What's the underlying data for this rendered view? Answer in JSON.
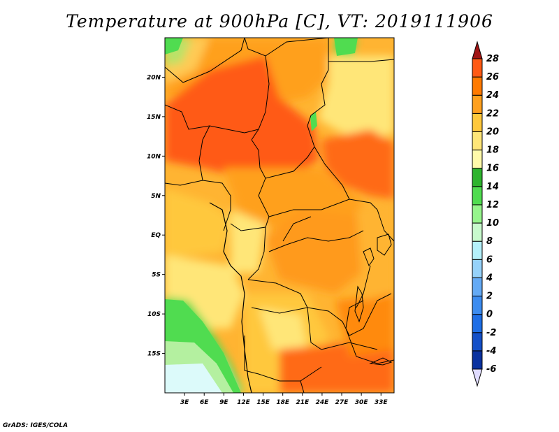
{
  "title": "Temperature at 900hPa [C], VT: 2019111906",
  "credit": "GrADS: IGES/COLA",
  "map": {
    "lon_range": [
      0,
      35
    ],
    "lat_range": [
      -20,
      25
    ],
    "x_ticks": [
      {
        "lon": 3,
        "label": "3E"
      },
      {
        "lon": 6,
        "label": "6E"
      },
      {
        "lon": 9,
        "label": "9E"
      },
      {
        "lon": 12,
        "label": "12E"
      },
      {
        "lon": 15,
        "label": "15E"
      },
      {
        "lon": 18,
        "label": "18E"
      },
      {
        "lon": 21,
        "label": "21E"
      },
      {
        "lon": 24,
        "label": "24E"
      },
      {
        "lon": 27,
        "label": "27E"
      },
      {
        "lon": 30,
        "label": "30E"
      },
      {
        "lon": 33,
        "label": "33E"
      }
    ],
    "y_ticks": [
      {
        "lat": 20,
        "label": "20N"
      },
      {
        "lat": 15,
        "label": "15N"
      },
      {
        "lat": 10,
        "label": "10N"
      },
      {
        "lat": 5,
        "label": "5N"
      },
      {
        "lat": 0,
        "label": "EQ"
      },
      {
        "lat": -5,
        "label": "5S"
      },
      {
        "lat": -10,
        "label": "10S"
      },
      {
        "lat": -15,
        "label": "15S"
      }
    ]
  },
  "colorbar": {
    "colors": [
      "#0a0a78",
      "#0a32a0",
      "#1450c8",
      "#1e6ee6",
      "#3c8cf0",
      "#64aaf5",
      "#96d2fa",
      "#b4f0fa",
      "#c8facd",
      "#96f58c",
      "#50dc50",
      "#2eb42e",
      "#fffaaa",
      "#ffe678",
      "#ffc83c",
      "#ffa01e",
      "#ff7a00",
      "#ff5a14",
      "#e11e0a",
      "#a01414"
    ],
    "under_color": "#e0dcff",
    "labels": [
      "-6",
      "-4",
      "-2",
      "0",
      "2",
      "4",
      "6",
      "8",
      "10",
      "12",
      "14",
      "16",
      "18",
      "20",
      "22",
      "24",
      "26",
      "28"
    ]
  }
}
